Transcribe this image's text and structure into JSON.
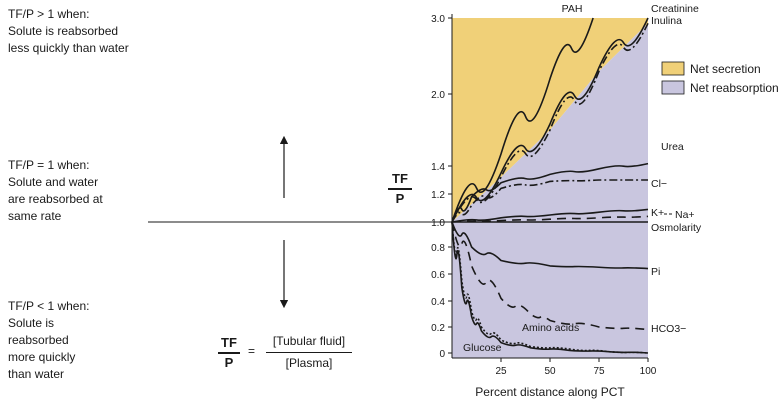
{
  "left_notes": {
    "greater": [
      "TF/P > 1 when:",
      "Solute is reabsorbed",
      "less quickly than water"
    ],
    "equal": [
      "TF/P = 1 when:",
      "Solute and water",
      "are reabsorbed at",
      "same rate"
    ],
    "less": [
      "TF/P < 1 when:",
      "Solute is",
      "reabsorbed",
      "more quickly",
      "than water"
    ]
  },
  "formula": {
    "lhs_top": "TF",
    "lhs_bottom": "P",
    "equals": "=",
    "rhs_top": "[Tubular fluid]",
    "rhs_bottom": "[Plasma]"
  },
  "axis_symbol": {
    "top": "TF",
    "bottom": "P"
  },
  "chart_data": {
    "type": "line",
    "xlabel": "Percent distance along PCT",
    "x_ticks": [
      "25",
      "50",
      "75",
      "100"
    ],
    "y_ticks": [
      "0",
      "0.2",
      "0.4",
      "0.6",
      "0.8",
      "1.0",
      "1.2",
      "1.4",
      "2.0",
      "3.0"
    ],
    "xlim": [
      0,
      100
    ],
    "ylim": [
      0,
      3.0
    ],
    "legend": {
      "position": "right",
      "entries": [
        {
          "label": "Net secretion",
          "color": "#f0d078"
        },
        {
          "label": "Net reabsorption",
          "color": "#c9c6df"
        }
      ]
    },
    "series": [
      {
        "name": "PAH",
        "style": "solid",
        "x": [
          0,
          25,
          50,
          72
        ],
        "y": [
          1.0,
          1.5,
          2.2,
          3.0
        ]
      },
      {
        "name": "Creatinine",
        "style": "solid",
        "x": [
          0,
          25,
          50,
          75,
          100
        ],
        "y": [
          1.0,
          1.35,
          1.75,
          2.35,
          3.0
        ]
      },
      {
        "name": "Inulina",
        "style": "dashdot",
        "x": [
          0,
          25,
          50,
          75,
          100
        ],
        "y": [
          1.0,
          1.32,
          1.7,
          2.3,
          2.93
        ]
      },
      {
        "name": "Urea",
        "style": "solid",
        "x": [
          0,
          10,
          25,
          50,
          75,
          100
        ],
        "y": [
          1.0,
          1.18,
          1.28,
          1.34,
          1.38,
          1.42
        ]
      },
      {
        "name": "Cl−",
        "style": "dashdot",
        "x": [
          0,
          10,
          25,
          50,
          75,
          100
        ],
        "y": [
          1.0,
          1.12,
          1.24,
          1.29,
          1.3,
          1.3
        ]
      },
      {
        "name": "K+",
        "style": "solid",
        "x": [
          0,
          25,
          50,
          75,
          100
        ],
        "y": [
          1.0,
          1.03,
          1.05,
          1.07,
          1.09
        ]
      },
      {
        "name": "Na+",
        "style": "dashed",
        "x": [
          0,
          25,
          50,
          75,
          100
        ],
        "y": [
          1.0,
          1.01,
          1.02,
          1.03,
          1.04
        ]
      },
      {
        "name": "Osmolarity",
        "style": "solid",
        "x": [
          0,
          25,
          50,
          75,
          100
        ],
        "y": [
          1.0,
          1.0,
          1.0,
          1.0,
          1.0
        ]
      },
      {
        "name": "Pi",
        "style": "solid",
        "x": [
          0,
          10,
          25,
          50,
          75,
          100
        ],
        "y": [
          1.0,
          0.8,
          0.7,
          0.66,
          0.65,
          0.64
        ]
      },
      {
        "name": "HCO3−",
        "style": "dashed",
        "x": [
          0,
          10,
          25,
          40,
          50,
          75,
          100
        ],
        "y": [
          1.0,
          0.66,
          0.42,
          0.3,
          0.25,
          0.2,
          0.18
        ]
      },
      {
        "name": "Amino acids",
        "style": "dotted",
        "x": [
          0,
          5,
          10,
          15,
          25,
          40,
          60,
          80,
          100
        ],
        "y": [
          1.0,
          0.55,
          0.32,
          0.2,
          0.1,
          0.05,
          0.03,
          0.01,
          0.0
        ]
      },
      {
        "name": "Glucose",
        "style": "solid",
        "x": [
          0,
          5,
          10,
          15,
          25,
          40,
          60,
          80,
          100
        ],
        "y": [
          1.0,
          0.5,
          0.28,
          0.17,
          0.08,
          0.04,
          0.02,
          0.01,
          0.0
        ]
      }
    ]
  }
}
